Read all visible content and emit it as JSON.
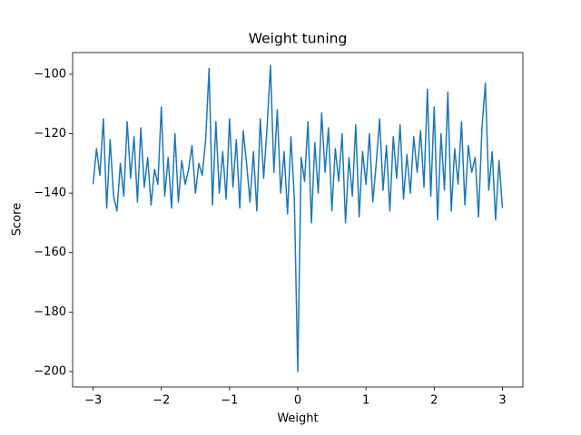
{
  "chart_data": {
    "type": "line",
    "title": "Weight tuning",
    "x_label": "Weight",
    "y_label": "Score",
    "x": [
      -3,
      -2.95,
      -2.9,
      -2.85,
      -2.8,
      -2.75,
      -2.7,
      -2.65,
      -2.6,
      -2.55,
      -2.5,
      -2.45,
      -2.4,
      -2.35,
      -2.3,
      -2.25,
      -2.2,
      -2.15,
      -2.1,
      -2.05,
      -2,
      -1.95,
      -1.9,
      -1.85,
      -1.8,
      -1.75,
      -1.7,
      -1.65,
      -1.6,
      -1.55,
      -1.5,
      -1.45,
      -1.4,
      -1.35,
      -1.3,
      -1.25,
      -1.2,
      -1.15,
      -1.1,
      -1.05,
      -1,
      -0.95,
      -0.9,
      -0.85,
      -0.8,
      -0.75,
      -0.7,
      -0.65,
      -0.6,
      -0.55,
      -0.5,
      -0.45,
      -0.4,
      -0.35,
      -0.3,
      -0.25,
      -0.2,
      -0.15,
      -0.1,
      -0.05,
      0,
      0.05,
      0.1,
      0.15,
      0.2,
      0.25,
      0.3,
      0.35,
      0.4,
      0.45,
      0.5,
      0.55,
      0.6,
      0.65,
      0.7,
      0.75,
      0.8,
      0.85,
      0.9,
      0.95,
      1,
      1.05,
      1.1,
      1.15,
      1.2,
      1.25,
      1.3,
      1.35,
      1.4,
      1.45,
      1.5,
      1.55,
      1.6,
      1.65,
      1.7,
      1.75,
      1.8,
      1.85,
      1.9,
      1.95,
      2,
      2.05,
      2.1,
      2.15,
      2.2,
      2.25,
      2.3,
      2.35,
      2.4,
      2.45,
      2.5,
      2.55,
      2.6,
      2.65,
      2.7,
      2.75,
      2.8,
      2.85,
      2.9,
      2.95,
      3
    ],
    "series": [
      {
        "name": "Score",
        "color": "#1f77b4",
        "values": [
          -137,
          -125,
          -134,
          -115,
          -145,
          -122,
          -141,
          -146,
          -130,
          -141,
          -116,
          -135,
          -121,
          -143,
          -118,
          -138,
          -128,
          -144,
          -132,
          -137,
          -111,
          -141,
          -128,
          -145,
          -120,
          -143,
          -129,
          -137,
          -132,
          -124,
          -140,
          -130,
          -134,
          -122,
          -98,
          -144,
          -116,
          -140,
          -126,
          -142,
          -115,
          -138,
          -122,
          -145,
          -119,
          -130,
          -143,
          -126,
          -146,
          -115,
          -135,
          -118,
          -97,
          -133,
          -112,
          -140,
          -126,
          -147,
          -121,
          -142,
          -200,
          -128,
          -136,
          -116,
          -150,
          -123,
          -140,
          -113,
          -133,
          -118,
          -146,
          -125,
          -136,
          -120,
          -150,
          -128,
          -141,
          -117,
          -148,
          -126,
          -137,
          -120,
          -143,
          -130,
          -115,
          -139,
          -124,
          -146,
          -121,
          -135,
          -117,
          -142,
          -127,
          -140,
          -121,
          -133,
          -119,
          -138,
          -105,
          -141,
          -111,
          -149,
          -120,
          -139,
          -106,
          -146,
          -125,
          -137,
          -116,
          -144,
          -124,
          -133,
          -128,
          -148,
          -118,
          -103,
          -139,
          -126,
          -149,
          -129,
          -145
        ]
      }
    ],
    "xlim": [
      -3.3,
      3.3
    ],
    "ylim": [
      -205.2,
      -92.7
    ],
    "xticks": [
      {
        "value": -3,
        "label": "−3"
      },
      {
        "value": -2,
        "label": "−2"
      },
      {
        "value": -1,
        "label": "−1"
      },
      0,
      1,
      2,
      3
    ],
    "yticks": [
      {
        "value": -200,
        "label": "−200"
      },
      {
        "value": -180,
        "label": "−180"
      },
      {
        "value": -160,
        "label": "−160"
      },
      {
        "value": -140,
        "label": "−140"
      },
      {
        "value": -120,
        "label": "−120"
      },
      {
        "value": -100,
        "label": "−100"
      }
    ],
    "grid": false
  }
}
